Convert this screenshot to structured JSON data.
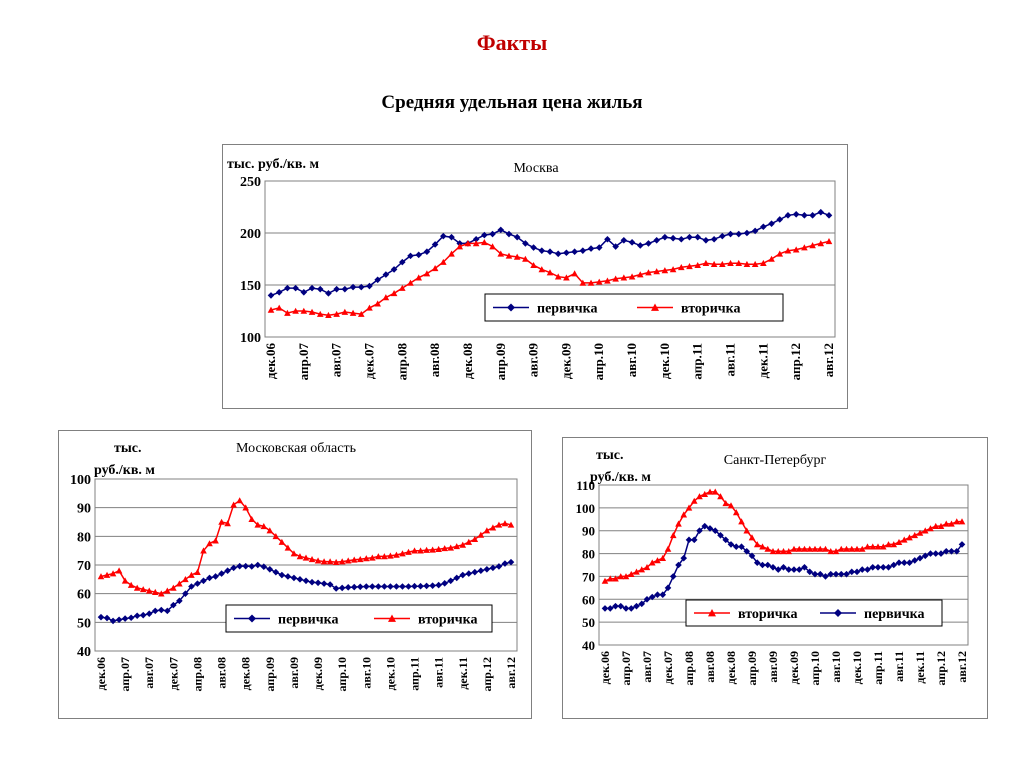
{
  "page": {
    "title": "Факты",
    "subtitle": "Средняя удельная цена жилья"
  },
  "chart_data": [
    {
      "type": "line",
      "title": "Москва",
      "ylabel": "тыс. руб./кв. м",
      "ylim": [
        100,
        250
      ],
      "yticks": [
        100,
        150,
        200,
        250
      ],
      "grid": true,
      "legend_position": "bottom-right",
      "x_start": "2006-12",
      "xtick_labels": [
        "дек.06",
        "апр.07",
        "авг.07",
        "дек.07",
        "апр.08",
        "авг.08",
        "дек.08",
        "апр.09",
        "авг.09",
        "дек.09",
        "апр.10",
        "авг.10",
        "дек.10",
        "апр.11",
        "авг.11",
        "дек.11",
        "апр.12",
        "авг.12"
      ],
      "series": [
        {
          "name": "первичка",
          "color": "#000080",
          "marker": "diamond",
          "values": [
            140,
            143,
            147,
            147,
            143,
            147,
            146,
            142,
            146,
            146,
            148,
            148,
            149,
            155,
            160,
            165,
            172,
            178,
            179,
            182,
            189,
            197,
            196,
            190,
            190,
            194,
            198,
            199,
            203,
            199,
            196,
            190,
            186,
            183,
            182,
            180,
            181,
            182,
            183,
            185,
            186,
            194,
            187,
            193,
            191,
            188,
            190,
            193,
            196,
            195,
            194,
            196,
            196,
            193,
            194,
            197,
            199,
            199,
            200,
            202,
            206,
            209,
            213,
            217,
            218,
            217,
            217,
            220,
            217
          ]
        },
        {
          "name": "вторичка",
          "color": "#ff0000",
          "marker": "triangle",
          "values": [
            126,
            128,
            123,
            125,
            125,
            124,
            122,
            121,
            122,
            124,
            123,
            122,
            128,
            132,
            138,
            142,
            147,
            152,
            157,
            161,
            166,
            172,
            180,
            187,
            190,
            190,
            191,
            187,
            180,
            178,
            177,
            175,
            169,
            165,
            162,
            158,
            157,
            161,
            152,
            152,
            153,
            154,
            156,
            157,
            158,
            160,
            162,
            163,
            164,
            165,
            167,
            168,
            169,
            171,
            170,
            170,
            171,
            171,
            170,
            170,
            171,
            175,
            180,
            183,
            184,
            186,
            188,
            190,
            192
          ]
        }
      ]
    },
    {
      "type": "line",
      "title": "Московская область",
      "ylabel": "тыс. руб./кв. м",
      "ylim": [
        40,
        100
      ],
      "yticks": [
        40,
        50,
        60,
        70,
        80,
        90,
        100
      ],
      "grid": true,
      "legend_position": "bottom-right",
      "x_start": "2006-12",
      "xtick_labels": [
        "дек.06",
        "апр.07",
        "авг.07",
        "дек.07",
        "апр.08",
        "авг.08",
        "дек.08",
        "апр.09",
        "авг.09",
        "дек.09",
        "апр.10",
        "авг.10",
        "дек.10",
        "апр.11",
        "авг.11",
        "дек.11",
        "апр.12",
        "авг.12"
      ],
      "series": [
        {
          "name": "первичка",
          "color": "#000080",
          "marker": "diamond",
          "values": [
            51.8,
            51.5,
            50.5,
            50.9,
            51.3,
            51.6,
            52.3,
            52.5,
            53.0,
            54.0,
            54.3,
            54.0,
            56.0,
            57.5,
            60.0,
            62.5,
            63.5,
            64.5,
            65.5,
            66.0,
            67.0,
            68.0,
            69.0,
            69.6,
            69.6,
            69.5,
            70.0,
            69.4,
            68.5,
            67.5,
            66.5,
            66.0,
            65.5,
            65.0,
            64.5,
            64.0,
            63.8,
            63.5,
            63.2,
            61.8,
            62.0,
            62.2,
            62.3,
            62.4,
            62.5,
            62.5,
            62.5,
            62.5,
            62.5,
            62.5,
            62.5,
            62.5,
            62.6,
            62.6,
            62.7,
            62.8,
            63.0,
            63.6,
            64.5,
            65.5,
            66.5,
            67.0,
            67.5,
            68.0,
            68.5,
            69.0,
            69.5,
            70.5,
            71.0
          ]
        },
        {
          "name": "вторичка",
          "color": "#ff0000",
          "marker": "triangle",
          "values": [
            66.0,
            66.5,
            67.0,
            68.0,
            64.5,
            63.0,
            62.0,
            61.5,
            61.0,
            60.5,
            60.0,
            61.0,
            62.0,
            63.5,
            65.0,
            66.5,
            67.5,
            75.0,
            77.5,
            78.5,
            85.0,
            84.5,
            91.0,
            92.5,
            90.0,
            86.0,
            84.0,
            83.5,
            82.0,
            80.0,
            78.0,
            76.0,
            74.0,
            73.0,
            72.5,
            72.0,
            71.5,
            71.2,
            71.2,
            71.0,
            71.2,
            71.5,
            71.8,
            72.0,
            72.3,
            72.5,
            73.0,
            73.0,
            73.2,
            73.5,
            74.0,
            74.5,
            75.0,
            75.0,
            75.2,
            75.3,
            75.5,
            75.8,
            76.0,
            76.5,
            77.0,
            78.0,
            79.0,
            80.5,
            82.0,
            83.0,
            84.0,
            84.5,
            84.0
          ]
        }
      ]
    },
    {
      "type": "line",
      "title": "Санкт-Петербург",
      "ylabel": "тыс. руб./кв. м",
      "ylim": [
        40,
        110
      ],
      "yticks": [
        40,
        50,
        60,
        70,
        80,
        90,
        100,
        110
      ],
      "grid": true,
      "legend_position": "bottom-right",
      "x_start": "2006-12",
      "xtick_labels": [
        "дек.06",
        "апр.07",
        "авг.07",
        "дек.07",
        "апр.08",
        "авг.08",
        "дек.08",
        "апр.09",
        "авг.09",
        "дек.09",
        "апр.10",
        "авг.10",
        "дек.10",
        "апр.11",
        "авг.11",
        "дек.11",
        "апр.12",
        "авг.12"
      ],
      "series": [
        {
          "name": "вторичка",
          "color": "#ff0000",
          "marker": "triangle",
          "values": [
            68,
            69,
            69,
            70,
            70,
            71,
            72,
            73,
            74,
            76,
            77,
            78,
            82,
            88,
            93,
            97,
            100,
            103,
            105,
            106,
            107,
            107,
            105,
            102,
            101,
            98,
            94,
            90,
            87,
            84,
            83,
            82,
            81,
            81,
            81,
            81,
            82,
            82,
            82,
            82,
            82,
            82,
            82,
            81,
            81,
            82,
            82,
            82,
            82,
            82,
            83,
            83,
            83,
            83,
            84,
            84,
            85,
            86,
            87,
            88,
            89,
            90,
            91,
            92,
            92,
            93,
            93,
            94,
            94
          ]
        },
        {
          "name": "первичка",
          "color": "#000080",
          "marker": "diamond",
          "values": [
            56,
            56,
            57,
            57,
            56,
            56,
            57,
            58,
            60,
            61,
            62,
            62,
            65,
            70,
            75,
            78,
            86,
            86,
            90,
            92,
            91,
            90,
            88,
            86,
            84,
            83,
            83,
            81,
            79,
            76,
            75,
            75,
            74,
            73,
            74,
            73,
            73,
            73,
            74,
            72,
            71,
            71,
            70,
            71,
            71,
            71,
            71,
            72,
            72,
            73,
            73,
            74,
            74,
            74,
            74,
            75,
            76,
            76,
            76,
            77,
            78,
            79,
            80,
            80,
            80,
            81,
            81,
            81,
            84
          ]
        }
      ]
    }
  ]
}
